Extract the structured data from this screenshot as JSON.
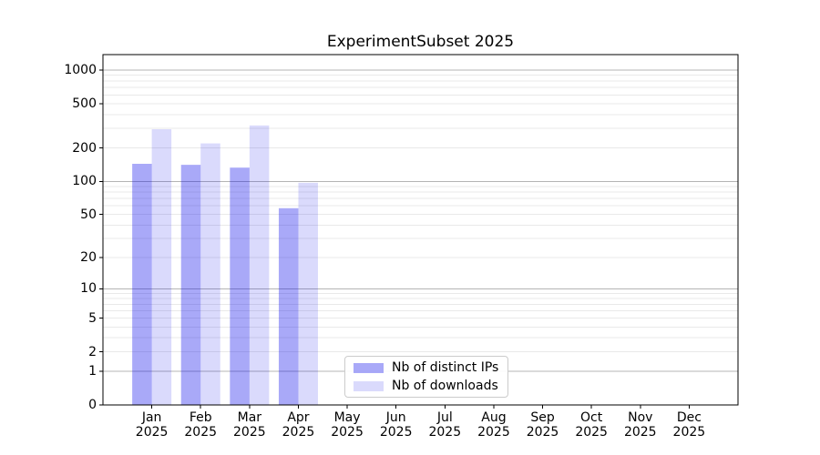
{
  "figure": {
    "background": "#ffffff",
    "axis_color": "#000000",
    "text_color": "#000000"
  },
  "chart_data": {
    "type": "bar",
    "title": "ExperimentSubset 2025",
    "categories": [
      "Jan",
      "Feb",
      "Mar",
      "Apr",
      "May",
      "Jun",
      "Jul",
      "Aug",
      "Sep",
      "Oct",
      "Nov",
      "Dec"
    ],
    "x_year_label": "2025",
    "series": [
      {
        "name": "Nb of distinct IPs",
        "color_hex": "#0808eb",
        "alpha": 0.35,
        "values": [
          144,
          141,
          133,
          57,
          null,
          null,
          null,
          null,
          null,
          null,
          null,
          null
        ]
      },
      {
        "name": "Nb of downloads",
        "color_hex": "#0808eb",
        "alpha": 0.15,
        "values": [
          295,
          220,
          319,
          97,
          null,
          null,
          null,
          null,
          null,
          null,
          null,
          null
        ]
      }
    ],
    "yscale": "log10(value+1)",
    "yticks": [
      0,
      1,
      2,
      5,
      10,
      20,
      50,
      100,
      200,
      500,
      1000
    ],
    "ylim": [
      0,
      1380
    ],
    "xlabel": "",
    "ylabel": "",
    "grid": {
      "orientation": "horizontal",
      "major_values": [
        1,
        10,
        100,
        1000
      ],
      "minor_values": [
        2,
        3,
        4,
        5,
        6,
        7,
        8,
        9,
        20,
        30,
        40,
        50,
        60,
        70,
        80,
        90,
        200,
        300,
        400,
        500,
        600,
        700,
        800,
        900
      ],
      "major_color": "#b4b4b4",
      "minor_color": "#e9e9e9"
    },
    "legend_position": "lower-center-inside"
  }
}
